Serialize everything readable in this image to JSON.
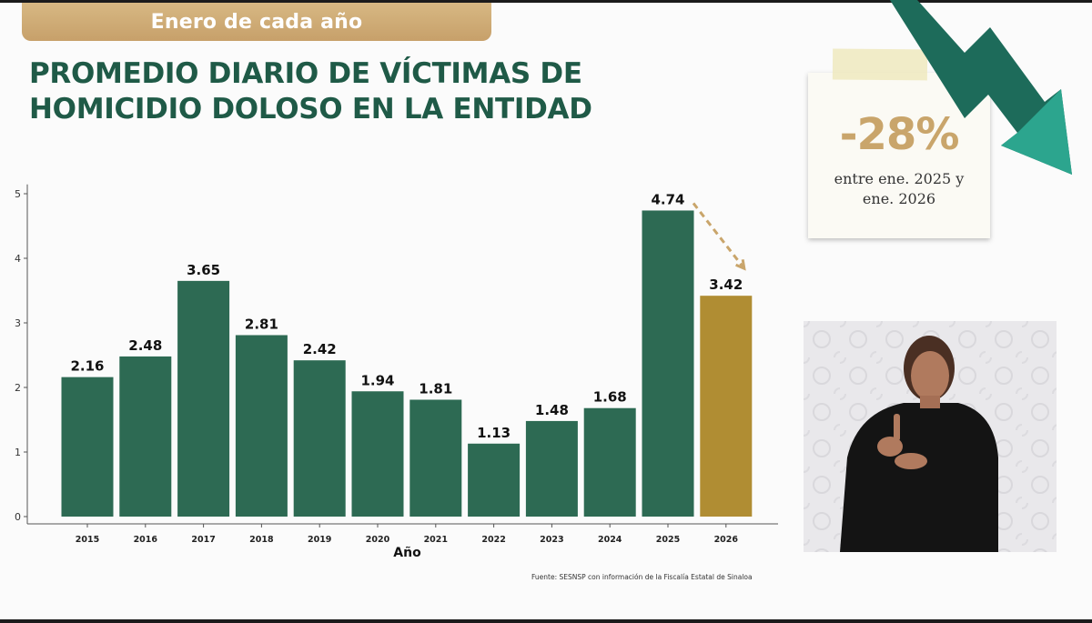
{
  "header": {
    "banner": "Enero de cada año",
    "title_line1": "PROMEDIO DIARIO DE VÍCTIMAS DE",
    "title_line2": "HOMICIDIO DOLOSO EN LA ENTIDAD"
  },
  "source": "Fuente: SESNSP con información de la Fiscalía Estatal de Sinaloa",
  "callout": {
    "percent": "-28%",
    "caption_line1": "entre ene. 2025 y",
    "caption_line2": "ene. 2026"
  },
  "colors": {
    "bar": "#2d6a53",
    "highlight_bar": "#b08d33",
    "title": "#1f5a47",
    "accent": "#c9a56b",
    "arrow": "#1d6b5a"
  },
  "chart_data": {
    "type": "bar",
    "title": "PROMEDIO DIARIO DE VÍCTIMAS DE HOMICIDIO DOLOSO EN LA ENTIDAD",
    "xlabel": "Año",
    "ylabel": "",
    "categories": [
      "2015",
      "2016",
      "2017",
      "2018",
      "2019",
      "2020",
      "2021",
      "2022",
      "2023",
      "2024",
      "2025",
      "2026"
    ],
    "values": [
      2.16,
      2.48,
      3.65,
      2.81,
      2.42,
      1.94,
      1.81,
      1.13,
      1.48,
      1.68,
      4.74,
      3.42
    ],
    "value_labels": [
      "2.16",
      "2.48",
      "3.65",
      "2.81",
      "2.42",
      "1.94",
      "1.81",
      "1.13",
      "1.48",
      "1.68",
      "4.74",
      "3.42"
    ],
    "highlight_category": "2026",
    "yticks": [
      0,
      1,
      2,
      3,
      4,
      5
    ],
    "ylim": [
      0,
      5.2
    ],
    "grid": false,
    "legend": "none"
  }
}
